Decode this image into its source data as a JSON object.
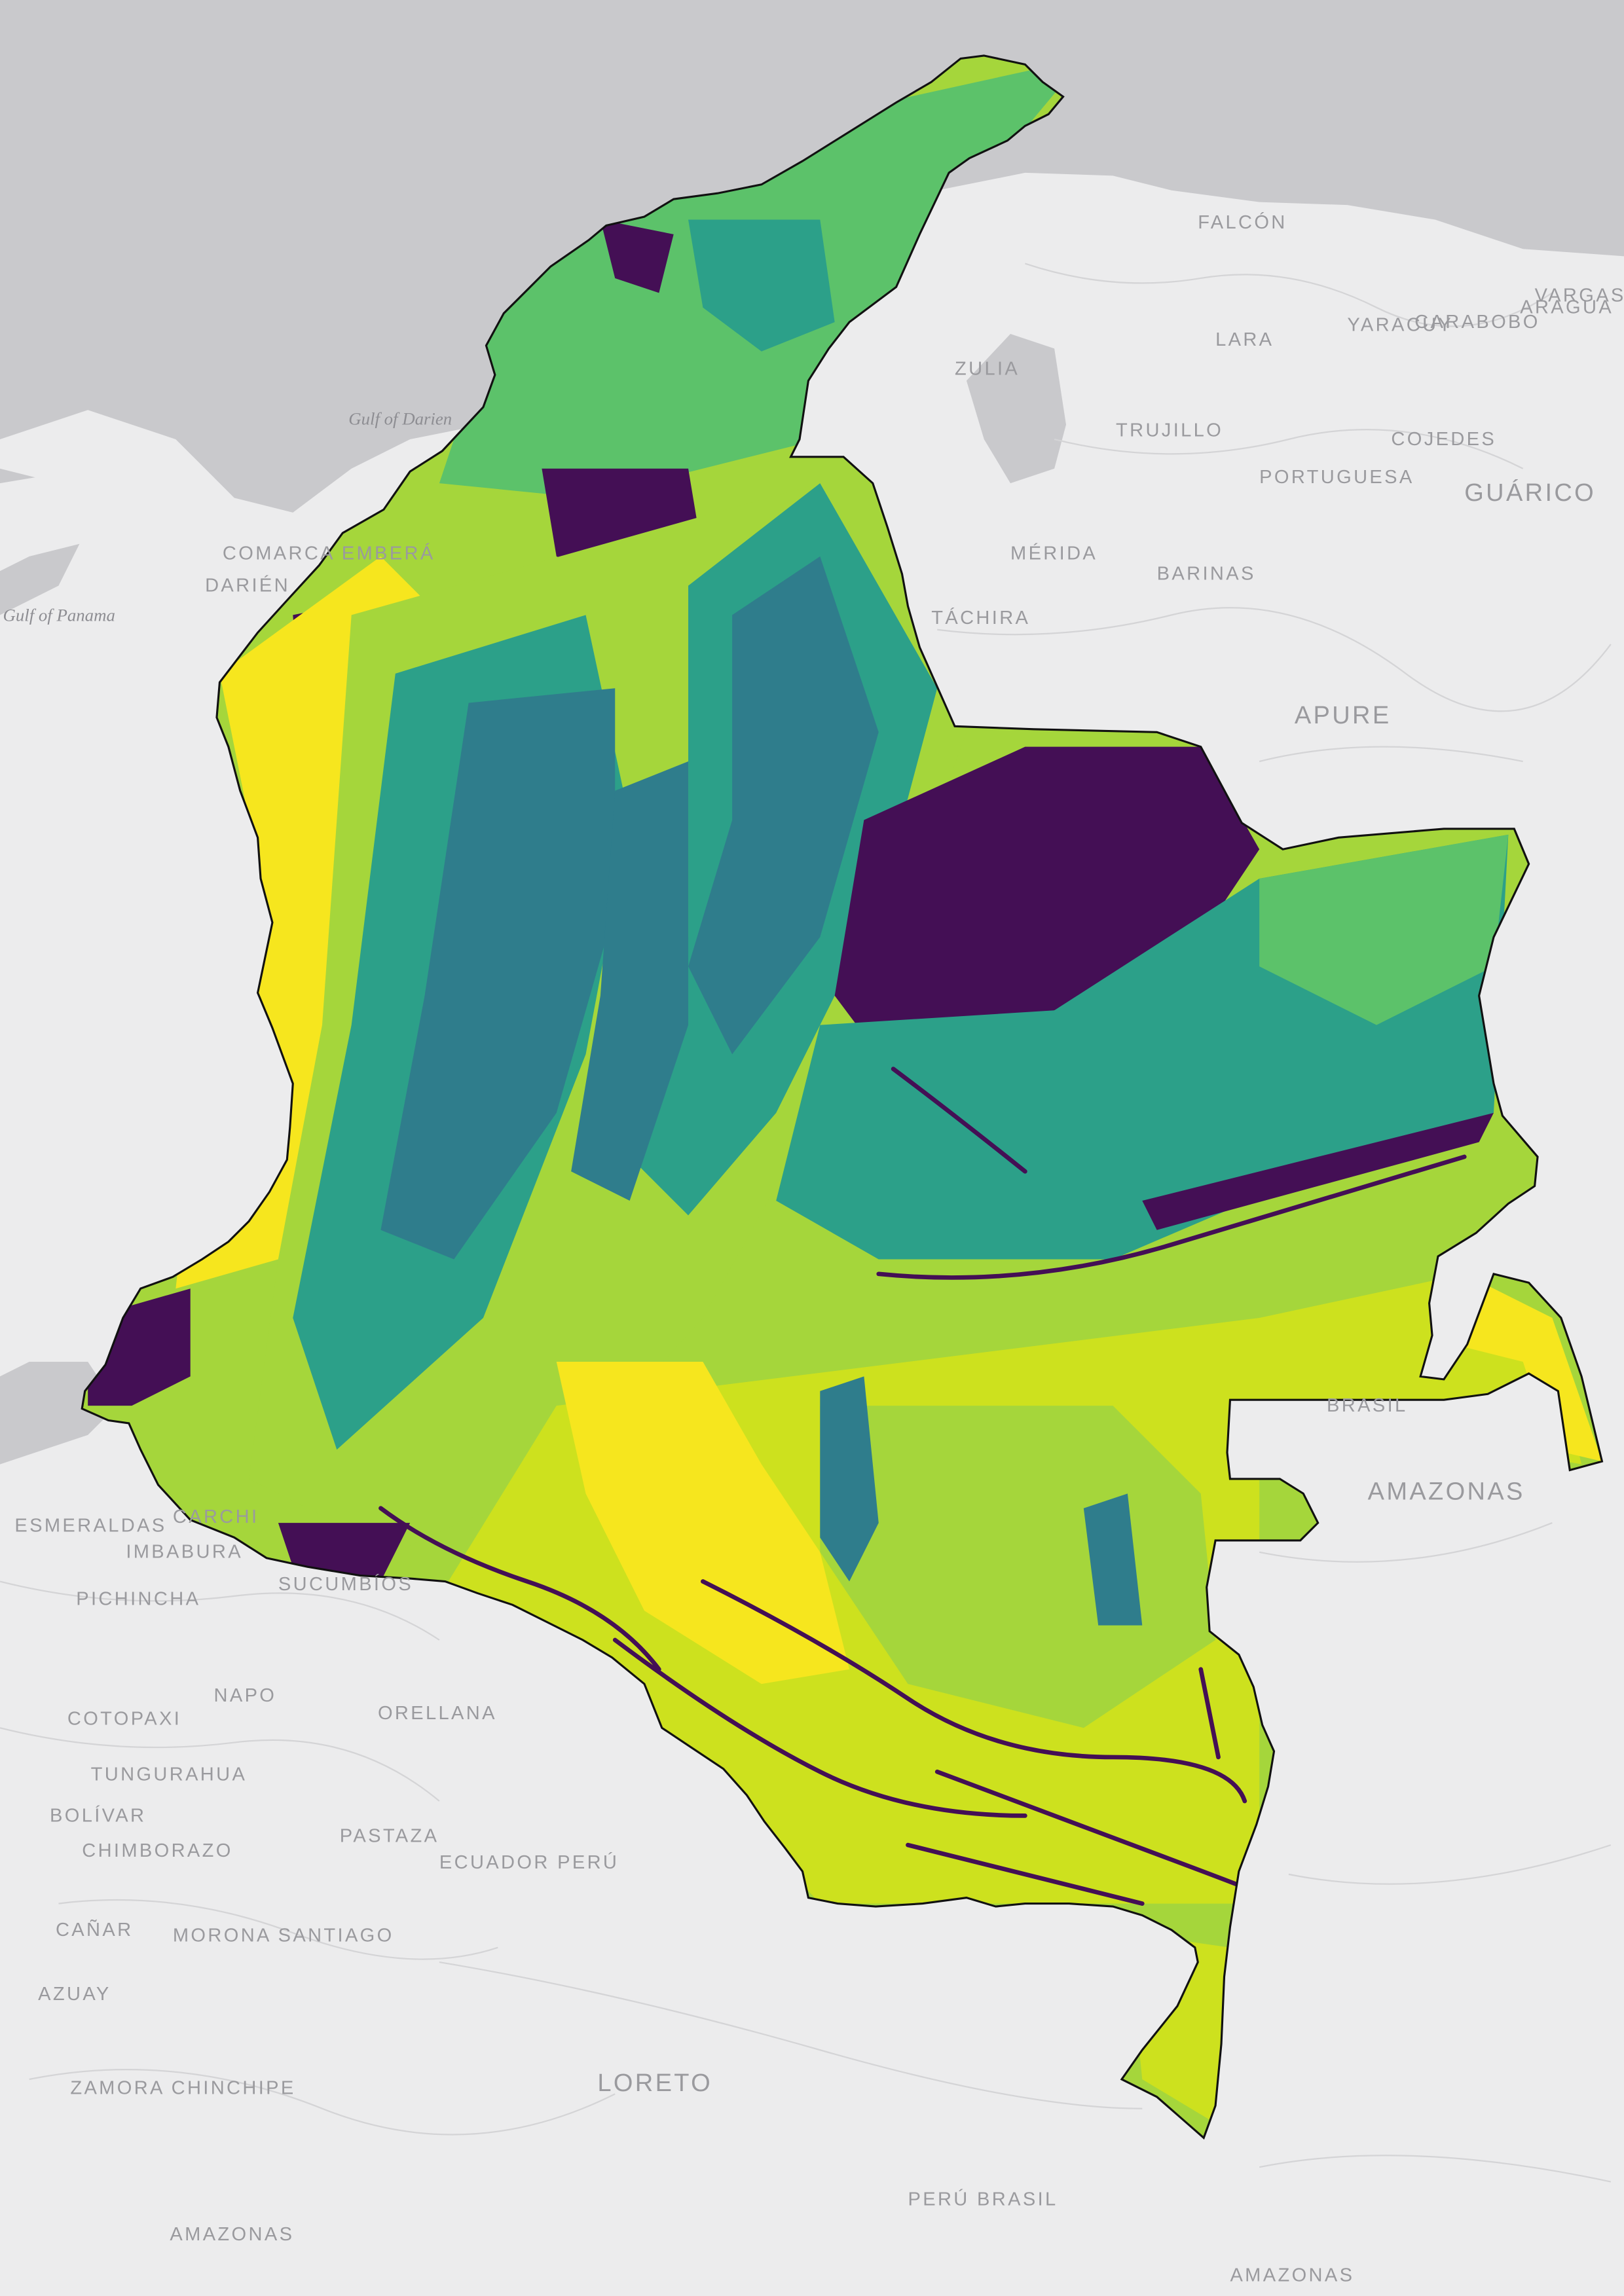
{
  "map": {
    "colors": {
      "sea": "#c9c9cc",
      "land": "#ececed",
      "borders": "#d4d4d6",
      "country_outline": "#111111",
      "class_1": "#440f55",
      "class_2": "#3a578b",
      "class_3": "#2f7d8c",
      "class_4": "#2ca089",
      "class_5": "#5cc26a",
      "class_6": "#a5d63b",
      "class_7": "#cde11e",
      "class_8": "#f6e61e"
    },
    "sea_labels": [
      "Gulf of Darien",
      "Gulf of Panama"
    ],
    "place_labels": [
      "FALCÓN",
      "LARA",
      "YARACUY",
      "CARABOBO",
      "ARAGUA",
      "VARGAS",
      "ZULIA",
      "TRUJILLO",
      "PORTUGUESA",
      "COJEDES",
      "GUÁRICO",
      "MÉRIDA",
      "BARINAS",
      "TÁCHIRA",
      "APURE",
      "COMARCA EMBERÁ",
      "DARIÉN",
      "ESMERALDAS",
      "CARCHI",
      "IMBABURA",
      "SUCUMBÍOS",
      "PICHINCHA",
      "NAPO",
      "ORELLANA",
      "COTOPAXI",
      "TUNGURAHUA",
      "BOLÍVAR",
      "PASTAZA",
      "CHIMBORAZO",
      "CAÑAR",
      "MORONA SANTIAGO",
      "AZUAY",
      "ZAMORA CHINCHIPE",
      "LORETO",
      "AMAZONAS",
      "BRASIL",
      "ECUADOR PERÚ",
      "PERÚ BRASIL"
    ]
  }
}
